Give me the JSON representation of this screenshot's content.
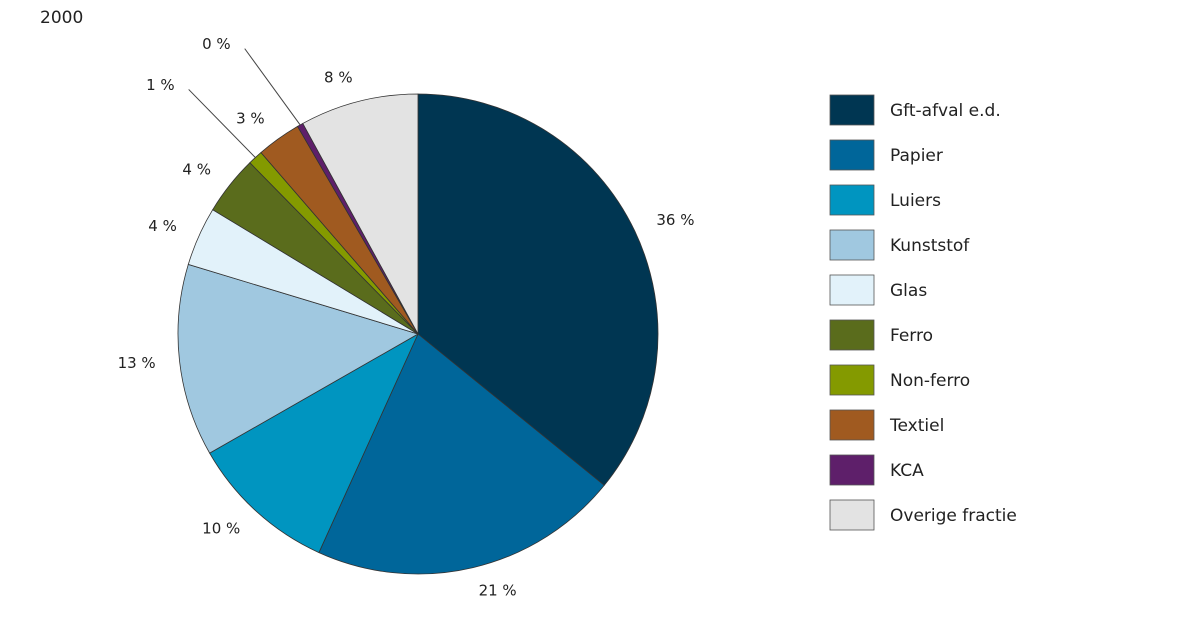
{
  "chart_data": {
    "type": "pie",
    "title": "2000",
    "categories": [
      "Gft-afval e.d.",
      "Papier",
      "Luiers",
      "Kunststof",
      "Glas",
      "Ferro",
      "Non-ferro",
      "Textiel",
      "KCA",
      "Overige fractie"
    ],
    "values": [
      36,
      21,
      10,
      13,
      4,
      4,
      1,
      3,
      0.4,
      8
    ],
    "value_labels": [
      "36 %",
      "21 %",
      "10 %",
      "13 %",
      "4 %",
      "4 %",
      "1 %",
      "3 %",
      "0 %",
      "8 %"
    ],
    "colors": [
      "#003652",
      "#00669a",
      "#0095c0",
      "#a0c8e0",
      "#e2f2fa",
      "#5a6c1c",
      "#849a00",
      "#a05a20",
      "#5e1f6a",
      "#e3e3e3"
    ],
    "legend": "right"
  }
}
